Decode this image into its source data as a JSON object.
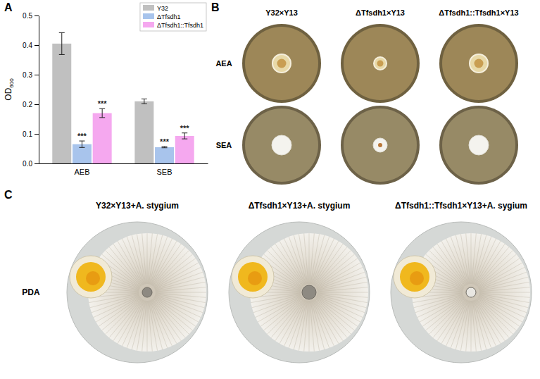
{
  "panel_labels": [
    "A",
    "B",
    "C"
  ],
  "chart_data": {
    "type": "bar",
    "ylabel": {
      "text": "OD",
      "subscript": "600"
    },
    "categories": [
      "AEB",
      "SEB"
    ],
    "series": [
      {
        "name": "Y32",
        "color": "#c0c0c0",
        "values": [
          0.405,
          0.21
        ],
        "errors": [
          0.037,
          0.008
        ],
        "significance": [
          null,
          null
        ]
      },
      {
        "name": "ΔTfsdh1",
        "color": "#a8c4ec",
        "values": [
          0.065,
          0.055
        ],
        "errors": [
          0.011,
          0.002
        ],
        "significance": [
          "***",
          "***"
        ]
      },
      {
        "name": "ΔTfsdh1::Tfsdh1",
        "color": "#f5a8ef",
        "values": [
          0.17,
          0.093
        ],
        "errors": [
          0.015,
          0.01
        ],
        "significance": [
          "***",
          "***"
        ]
      }
    ],
    "ylim": [
      0,
      0.5
    ],
    "yticks": [
      {
        "value": 0,
        "label": "0.0"
      },
      0.1,
      0.2,
      0.3,
      0.4,
      0.5
    ],
    "grid": false,
    "legend": "upper right"
  },
  "panel_b": {
    "columns": [
      "Y32×Y13",
      "ΔTfsdh1×Y13",
      "ΔTfsdh1::Tfsdh1×Y13"
    ],
    "rows": [
      "AEA",
      "SEA"
    ]
  },
  "panel_c": {
    "columns": [
      "Y32×Y13+A. stygium",
      "ΔTfsdh1×Y13+A. stygium",
      "ΔTfsdh1::Tfsdh1×Y13+A. sygium"
    ],
    "rows": [
      "PDA"
    ]
  }
}
